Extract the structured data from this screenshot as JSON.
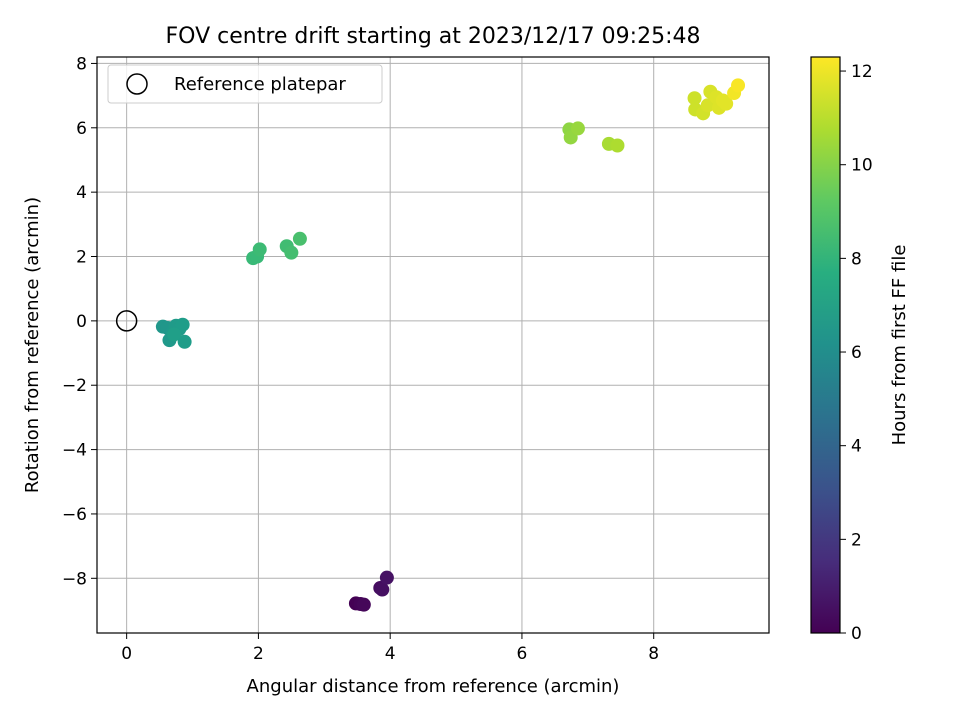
{
  "chart_data": {
    "type": "scatter",
    "title": "FOV centre drift starting at 2023/12/17 09:25:48",
    "xlabel": "Angular distance from reference (arcmin)",
    "ylabel": "Rotation from reference (arcmin)",
    "xlim": [
      -0.45,
      9.75
    ],
    "ylim": [
      -9.7,
      8.2
    ],
    "xticks": [
      0,
      2,
      4,
      6,
      8
    ],
    "xtick_labels": [
      "0",
      "2",
      "4",
      "6",
      "8"
    ],
    "yticks": [
      -8,
      -6,
      -4,
      -2,
      0,
      2,
      4,
      6,
      8
    ],
    "ytick_labels": [
      "−8",
      "−6",
      "−4",
      "−2",
      "0",
      "2",
      "4",
      "6",
      "8"
    ],
    "grid": true,
    "legend_position": "upper-left",
    "reference": {
      "label": "Reference platepar",
      "x": 0,
      "y": 0
    },
    "colorbar": {
      "label": "Hours from first FF file",
      "colormap": "viridis",
      "range": [
        0,
        12.3
      ],
      "ticks": [
        0,
        2,
        4,
        6,
        8,
        10,
        12
      ],
      "tick_labels": [
        "0",
        "2",
        "4",
        "6",
        "8",
        "10",
        "12"
      ]
    },
    "points": [
      {
        "x": 3.48,
        "y": -8.78,
        "hours": 0.0
      },
      {
        "x": 3.55,
        "y": -8.8,
        "hours": 0.1
      },
      {
        "x": 3.6,
        "y": -8.82,
        "hours": 0.2
      },
      {
        "x": 3.85,
        "y": -8.3,
        "hours": 0.4
      },
      {
        "x": 3.88,
        "y": -8.35,
        "hours": 0.5
      },
      {
        "x": 3.95,
        "y": -7.98,
        "hours": 0.6
      },
      {
        "x": 0.55,
        "y": -0.18,
        "hours": 6.5
      },
      {
        "x": 0.62,
        "y": -0.22,
        "hours": 6.5
      },
      {
        "x": 0.65,
        "y": -0.6,
        "hours": 6.6
      },
      {
        "x": 0.7,
        "y": -0.35,
        "hours": 6.6
      },
      {
        "x": 0.75,
        "y": -0.15,
        "hours": 6.7
      },
      {
        "x": 0.8,
        "y": -0.25,
        "hours": 6.7
      },
      {
        "x": 0.85,
        "y": -0.12,
        "hours": 6.8
      },
      {
        "x": 0.88,
        "y": -0.65,
        "hours": 6.8
      },
      {
        "x": 0.72,
        "y": -0.42,
        "hours": 6.9
      },
      {
        "x": 1.92,
        "y": 1.95,
        "hours": 8.3
      },
      {
        "x": 1.98,
        "y": 2.0,
        "hours": 8.3
      },
      {
        "x": 2.02,
        "y": 2.22,
        "hours": 8.4
      },
      {
        "x": 2.43,
        "y": 2.32,
        "hours": 8.5
      },
      {
        "x": 2.5,
        "y": 2.12,
        "hours": 8.6
      },
      {
        "x": 2.63,
        "y": 2.55,
        "hours": 8.7
      },
      {
        "x": 6.72,
        "y": 5.95,
        "hours": 10.2
      },
      {
        "x": 6.74,
        "y": 5.7,
        "hours": 10.3
      },
      {
        "x": 6.85,
        "y": 5.98,
        "hours": 10.4
      },
      {
        "x": 7.32,
        "y": 5.5,
        "hours": 10.7
      },
      {
        "x": 7.45,
        "y": 5.45,
        "hours": 10.8
      },
      {
        "x": 8.62,
        "y": 6.92,
        "hours": 11.4
      },
      {
        "x": 8.63,
        "y": 6.57,
        "hours": 11.4
      },
      {
        "x": 8.75,
        "y": 6.45,
        "hours": 11.5
      },
      {
        "x": 8.82,
        "y": 6.7,
        "hours": 11.6
      },
      {
        "x": 8.86,
        "y": 7.12,
        "hours": 11.6
      },
      {
        "x": 8.95,
        "y": 6.95,
        "hours": 11.7
      },
      {
        "x": 8.99,
        "y": 6.62,
        "hours": 11.7
      },
      {
        "x": 9.05,
        "y": 6.85,
        "hours": 11.8
      },
      {
        "x": 9.1,
        "y": 6.75,
        "hours": 11.8
      },
      {
        "x": 9.22,
        "y": 7.08,
        "hours": 12.1
      },
      {
        "x": 9.28,
        "y": 7.32,
        "hours": 12.2
      }
    ]
  }
}
